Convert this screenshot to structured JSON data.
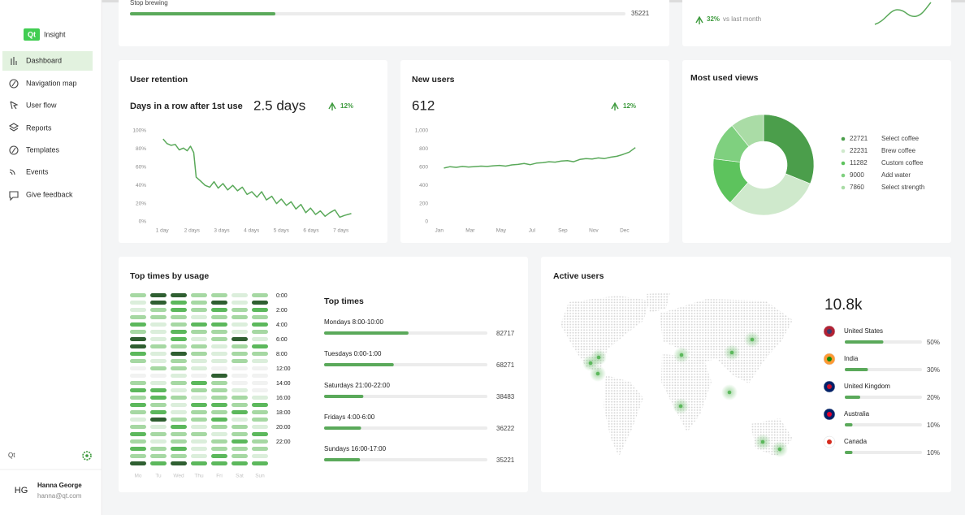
{
  "sidebar": {
    "logo": "Qt",
    "app_name": "Insight",
    "nav": [
      "Dashboard",
      "Navigation map",
      "User flow",
      "Reports",
      "Templates",
      "Events",
      "Give feedback"
    ],
    "footer_label": "Qt",
    "user": {
      "initials": "HG",
      "name": "Hanna George",
      "email": "hanna@qt.com"
    }
  },
  "stop_brewing": {
    "label": "Stop brewing",
    "value": 35221,
    "xlim": [
      0,
      120000
    ]
  },
  "monthly_trend": {
    "change": "32%",
    "note": "vs last month"
  },
  "user_retention": {
    "title": "User retention",
    "subtitle": "Days in a row after 1st use",
    "value": "2.5 days",
    "change": "12%",
    "chart_data": {
      "type": "line",
      "color": "#5aa95a",
      "x": [
        1.03,
        1.16,
        1.3,
        1.44,
        1.57,
        1.71,
        1.84,
        1.95,
        2.06,
        2.14,
        2.28,
        2.44,
        2.6,
        2.74,
        2.88,
        3.04,
        3.2,
        3.37,
        3.53,
        3.69,
        3.85,
        4.01,
        4.18,
        4.34,
        4.5,
        4.68,
        4.84,
        5.0,
        5.17,
        5.33,
        5.49,
        5.66,
        5.82,
        5.98,
        6.15,
        6.31,
        6.47,
        6.63,
        6.8,
        6.96,
        7.12,
        7.35
      ],
      "values": [
        91,
        86,
        84,
        85,
        79,
        81,
        78,
        83,
        76,
        49,
        45,
        40,
        38,
        44,
        37,
        42,
        35,
        40,
        34,
        38,
        30,
        33,
        27,
        33,
        24,
        28,
        20,
        25,
        18,
        22,
        14,
        19,
        10,
        15,
        8,
        12,
        6,
        10,
        13,
        5,
        7,
        9
      ],
      "xlim": [
        0.6,
        7.5
      ],
      "xticks": [
        {
          "value": 1,
          "label": "1 day"
        },
        {
          "value": 2,
          "label": "2 days"
        },
        {
          "value": 3,
          "label": "3 days"
        },
        {
          "value": 4,
          "label": "4 days"
        },
        {
          "value": 5,
          "label": "5 days"
        },
        {
          "value": 6,
          "label": "6 days"
        },
        {
          "value": 7,
          "label": "7 days"
        }
      ],
      "ylim": [
        0,
        100
      ],
      "yticks": [
        {
          "value": 0,
          "label": "0%"
        },
        {
          "value": 20,
          "label": "20%"
        },
        {
          "value": 40,
          "label": "40%"
        },
        {
          "value": 60,
          "label": "60%"
        },
        {
          "value": 80,
          "label": "80%"
        },
        {
          "value": 100,
          "label": "100%"
        }
      ]
    }
  },
  "new_users": {
    "title": "New users",
    "value": "612",
    "change": "12%",
    "chart_data": {
      "type": "line",
      "color": "#5aa95a",
      "x": [
        0.15,
        0.35,
        0.55,
        0.75,
        0.95,
        1.15,
        1.35,
        1.55,
        1.75,
        1.95,
        2.15,
        2.35,
        2.55,
        2.75,
        2.95,
        3.15,
        3.35,
        3.55,
        3.75,
        3.95,
        4.15,
        4.35,
        4.55,
        4.75,
        4.95,
        5.15,
        5.35,
        5.55,
        5.75,
        5.95,
        6.15,
        6.35
      ],
      "values": [
        590,
        605,
        598,
        608,
        602,
        606,
        612,
        608,
        615,
        620,
        612,
        625,
        630,
        640,
        628,
        645,
        650,
        660,
        655,
        668,
        672,
        660,
        685,
        695,
        690,
        702,
        695,
        710,
        720,
        740,
        765,
        815
      ],
      "xlim": [
        -0.1,
        6.45
      ],
      "xticks": [
        {
          "value": 0,
          "label": "Jan"
        },
        {
          "value": 1,
          "label": "Mar"
        },
        {
          "value": 2,
          "label": "May"
        },
        {
          "value": 3,
          "label": "Jul"
        },
        {
          "value": 4,
          "label": "Sep"
        },
        {
          "value": 5,
          "label": "Nov"
        },
        {
          "value": 6,
          "label": "Dec"
        }
      ],
      "ylim": [
        0,
        1000
      ],
      "yticks": [
        0,
        200,
        400,
        600,
        800,
        {
          "value": 1000,
          "label": "1,000"
        }
      ]
    }
  },
  "most_used_views": {
    "title": "Most used views",
    "chart_data": {
      "type": "donut",
      "categories": [
        "Select coffee",
        "Brew coffee",
        "Custom coffee",
        "Add water",
        "Select strength"
      ],
      "values": [
        22721,
        22231,
        11282,
        9000,
        7860
      ],
      "colors": [
        "#4b9e4b",
        "#cfe9cc",
        "#5dc35d",
        "#7fd07f",
        "#aadca6"
      ]
    }
  },
  "top_times": {
    "title": "Top times by usage",
    "heatmap": {
      "days": [
        "Mo",
        "Tu",
        "Wed",
        "Thu",
        "Fri",
        "Sat",
        "Sun"
      ],
      "hours": [
        "0:00",
        "2:00",
        "4:00",
        "6:00",
        "8:00",
        "12:00",
        "14:00",
        "16:00",
        "18:00",
        "20:00",
        "22:00"
      ],
      "hour_rows": [
        0,
        2,
        4,
        6,
        8,
        10,
        12,
        14,
        16,
        18,
        20
      ],
      "colors": [
        "#f1f2f1",
        "#dbeedb",
        "#a6d8a3",
        "#5cb85c",
        "#2f5f31"
      ],
      "levels": [
        [
          2,
          4,
          4,
          2,
          2,
          1,
          2
        ],
        [
          1,
          4,
          3,
          2,
          4,
          1,
          4
        ],
        [
          1,
          2,
          3,
          2,
          3,
          2,
          3
        ],
        [
          2,
          2,
          2,
          1,
          2,
          2,
          2
        ],
        [
          3,
          1,
          2,
          3,
          3,
          1,
          3
        ],
        [
          2,
          1,
          3,
          2,
          2,
          1,
          2
        ],
        [
          4,
          1,
          3,
          1,
          2,
          4,
          1
        ],
        [
          4,
          2,
          2,
          2,
          1,
          2,
          3
        ],
        [
          3,
          1,
          4,
          2,
          1,
          2,
          2
        ],
        [
          2,
          1,
          2,
          1,
          1,
          2,
          1
        ],
        [
          0,
          2,
          2,
          1,
          0,
          0,
          0
        ],
        [
          0,
          0,
          1,
          0,
          4,
          0,
          0
        ],
        [
          2,
          1,
          2,
          3,
          2,
          0,
          0
        ],
        [
          3,
          3,
          1,
          2,
          2,
          1,
          0
        ],
        [
          2,
          3,
          2,
          1,
          2,
          2,
          1
        ],
        [
          3,
          2,
          1,
          3,
          3,
          2,
          3
        ],
        [
          2,
          3,
          1,
          2,
          2,
          3,
          2
        ],
        [
          1,
          4,
          2,
          2,
          3,
          1,
          2
        ],
        [
          2,
          1,
          3,
          1,
          2,
          2,
          1
        ],
        [
          3,
          2,
          2,
          2,
          1,
          2,
          3
        ],
        [
          2,
          1,
          2,
          1,
          2,
          3,
          2
        ],
        [
          3,
          2,
          3,
          1,
          2,
          2,
          2
        ],
        [
          2,
          2,
          2,
          1,
          3,
          2,
          1
        ],
        [
          4,
          3,
          4,
          3,
          3,
          3,
          3
        ]
      ]
    },
    "list": {
      "title": "Top times",
      "labels": [
        "Mondays 8:00-10:00",
        "Tuesdays 0:00-1:00",
        "Saturdays 21:00-22:00",
        "Fridays 4:00-6:00",
        "Sundays  16:00-17:00"
      ],
      "values": [
        82717,
        68271,
        38483,
        36222,
        35221
      ],
      "xlim": [
        0,
        160000
      ]
    }
  },
  "active_users": {
    "title": "Active users",
    "total": "10.8k",
    "countries": [
      "United States",
      "India",
      "United Kingdom",
      "Australia",
      "Canada"
    ],
    "values": [
      50,
      30,
      20,
      10,
      10
    ],
    "value_labels": [
      "50%",
      "30%",
      "20%",
      "10%",
      "10%"
    ],
    "xlim": [
      0,
      100
    ]
  }
}
